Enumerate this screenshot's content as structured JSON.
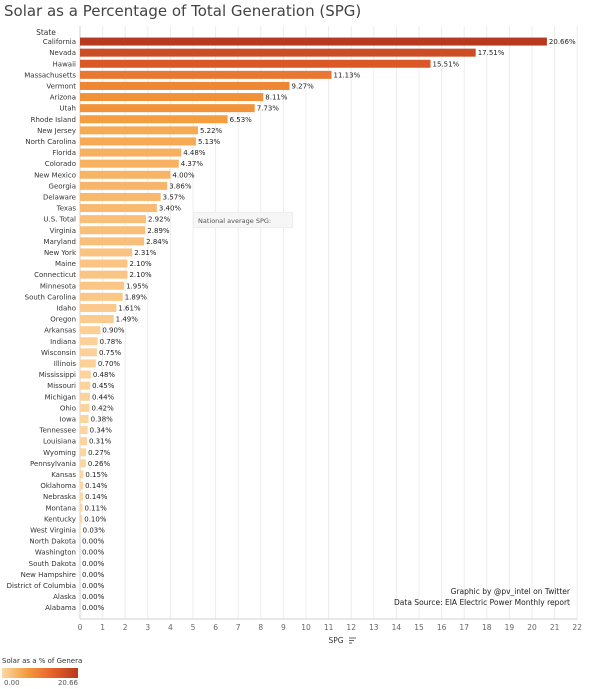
{
  "chart_data": {
    "type": "bar",
    "orientation": "horizontal",
    "title": "Solar as a Percentage of Total Generation (SPG)",
    "row_header": "State",
    "xlabel": "SPG",
    "xlim": [
      0,
      22
    ],
    "xticks": [
      0,
      1,
      2,
      3,
      4,
      5,
      6,
      7,
      8,
      9,
      10,
      11,
      12,
      13,
      14,
      15,
      16,
      17,
      18,
      19,
      20,
      21,
      22
    ],
    "grid": "vertical",
    "categories": [
      "California",
      "Nevada",
      "Hawaii",
      "Massachusetts",
      "Vermont",
      "Arizona",
      "Utah",
      "Rhode Island",
      "New Jersey",
      "North Carolina",
      "Florida",
      "Colorado",
      "New Mexico",
      "Georgia",
      "Delaware",
      "Texas",
      "U.S. Total",
      "Virginia",
      "Maryland",
      "New York",
      "Maine",
      "Connecticut",
      "Minnesota",
      "South Carolina",
      "Idaho",
      "Oregon",
      "Arkansas",
      "Indiana",
      "Wisconsin",
      "Illinois",
      "Mississippi",
      "Missouri",
      "Michigan",
      "Ohio",
      "Iowa",
      "Tennessee",
      "Louisiana",
      "Wyoming",
      "Pennsylvania",
      "Kansas",
      "Oklahoma",
      "Nebraska",
      "Montana",
      "Kentucky",
      "West Virginia",
      "North Dakota",
      "Washington",
      "South Dakota",
      "New Hampshire",
      "District of Columbia",
      "Alaska",
      "Alabama"
    ],
    "values": [
      20.66,
      17.51,
      15.51,
      11.13,
      9.27,
      8.11,
      7.73,
      6.53,
      5.22,
      5.13,
      4.48,
      4.37,
      4.0,
      3.86,
      3.57,
      3.4,
      2.92,
      2.89,
      2.84,
      2.31,
      2.1,
      2.1,
      1.95,
      1.89,
      1.61,
      1.49,
      0.9,
      0.78,
      0.75,
      0.7,
      0.48,
      0.45,
      0.44,
      0.42,
      0.38,
      0.34,
      0.31,
      0.27,
      0.26,
      0.15,
      0.14,
      0.14,
      0.11,
      0.1,
      0.03,
      0.0,
      0.0,
      0.0,
      0.0,
      0.0,
      0.0,
      0.0
    ],
    "value_labels": [
      "20.66%",
      "17.51%",
      "15.51%",
      "11.13%",
      "9.27%",
      "8.11%",
      "7.73%",
      "6.53%",
      "5.22%",
      "5.13%",
      "4.48%",
      "4.37%",
      "4.00%",
      "3.86%",
      "3.57%",
      "3.40%",
      "2.92%",
      "2.89%",
      "2.84%",
      "2.31%",
      "2.10%",
      "2.10%",
      "1.95%",
      "1.89%",
      "1.61%",
      "1.49%",
      "0.90%",
      "0.78%",
      "0.75%",
      "0.70%",
      "0.48%",
      "0.45%",
      "0.44%",
      "0.42%",
      "0.38%",
      "0.34%",
      "0.31%",
      "0.27%",
      "0.26%",
      "0.15%",
      "0.14%",
      "0.14%",
      "0.11%",
      "0.10%",
      "0.03%",
      "0.00%",
      "0.00%",
      "0.00%",
      "0.00%",
      "0.00%",
      "0.00%",
      "0.00%"
    ],
    "color_scale": {
      "min": 0.0,
      "max": 20.66,
      "colors": [
        "#fdd7a4",
        "#f39b3b",
        "#e5612b",
        "#b83a1e"
      ]
    }
  },
  "tooltip": {
    "text": "National average SPG:"
  },
  "credits": {
    "line1": "Graphic by @pv_intel on Twitter",
    "line2": "Data Source: EIA Electric Power Monthly report"
  },
  "legend": {
    "title": "Solar as a % of Generat..",
    "min_label": "0.00",
    "max_label": "20.66"
  },
  "icons": {
    "sort": "sort-descending-icon"
  }
}
